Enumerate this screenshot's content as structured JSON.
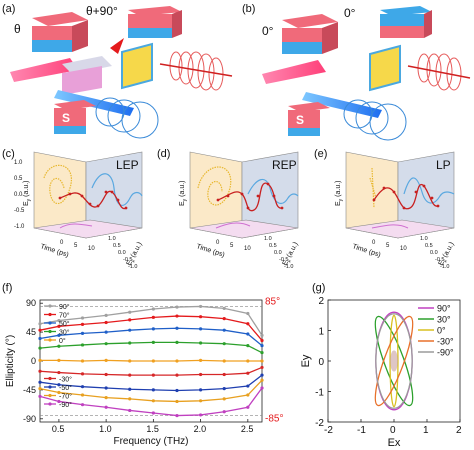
{
  "figure": {
    "panel_labels": [
      "(a)",
      "(b)",
      "(c)",
      "(d)",
      "(e)",
      "(f)",
      "(g)"
    ],
    "panel_a": {
      "angle_left": "θ",
      "angle_right": "θ+90°"
    },
    "panel_b": {
      "angle_left": "0°",
      "angle_right": "0°"
    },
    "panel_c": {
      "mode": "LEP"
    },
    "panel_d": {
      "mode": "REP"
    },
    "panel_e": {
      "mode": "LP"
    },
    "axes3d": {
      "ylabel": "E",
      "ysub": "y",
      "yunit": "(a.u.)",
      "xlabel": "Time (ps)",
      "zlabel": "E",
      "zsub": "x",
      "zunit": "(a.u.)",
      "yticks": [
        "1.0",
        "0.5",
        "0.0",
        "-0.5",
        "-1.0"
      ],
      "xticks": [
        "0",
        "5",
        "10"
      ],
      "zticks": [
        "1.0",
        "0.5",
        "0.0",
        "-0.5",
        "-1.0"
      ]
    }
  },
  "chart_data": [
    {
      "type": "line",
      "panel": "(f)",
      "xlabel": "Frequency (THz)",
      "ylabel": "Ellipticity (°)",
      "xlim": [
        0.3,
        2.65
      ],
      "ylim": [
        -95,
        95
      ],
      "xticks": [
        "0.5",
        "1.0",
        "1.5",
        "2.0",
        "2.5"
      ],
      "yticks": [
        "90",
        "45",
        "0",
        "-45",
        "-90"
      ],
      "ytick_values": [
        90,
        45,
        0,
        -45,
        -90
      ],
      "xtick_values": [
        0.5,
        1.0,
        1.5,
        2.0,
        2.5
      ],
      "annotations": [
        "85°",
        "-85°"
      ],
      "annotation_values": [
        85,
        -85
      ],
      "annotation_color": "#e41a1c",
      "legend_placement": "left",
      "x": [
        0.3,
        0.5,
        0.75,
        1.0,
        1.25,
        1.5,
        1.75,
        2.0,
        2.25,
        2.5,
        2.65
      ],
      "series": [
        {
          "name": "90°",
          "color": "#a0a0a0",
          "values": [
            58,
            63,
            67,
            71,
            76,
            81,
            84,
            85,
            82,
            74,
            40
          ]
        },
        {
          "name": "70°",
          "color": "#e41a1c",
          "values": [
            48,
            54,
            57,
            60,
            64,
            68,
            70,
            69,
            66,
            58,
            32
          ]
        },
        {
          "name": "50°",
          "color": "#1f5fc8",
          "values": [
            35,
            40,
            43,
            45,
            48,
            50,
            51,
            50,
            48,
            42,
            24
          ]
        },
        {
          "name": "30°",
          "color": "#2ca02c",
          "values": [
            20,
            23,
            25,
            27,
            28,
            29,
            29,
            28,
            27,
            24,
            13
          ]
        },
        {
          "name": "0°",
          "color": "#f0a020",
          "values": [
            1,
            1,
            0,
            1,
            0,
            0,
            0,
            1,
            0,
            0,
            0
          ]
        },
        {
          "name": "-30°",
          "color": "#d62728",
          "values": [
            -16,
            -18,
            -20,
            -21,
            -22,
            -22,
            -22,
            -21,
            -21,
            -19,
            -10
          ]
        },
        {
          "name": "-50°",
          "color": "#1f3fb0",
          "values": [
            -33,
            -37,
            -40,
            -42,
            -44,
            -45,
            -46,
            -45,
            -43,
            -39,
            -22
          ]
        },
        {
          "name": "-70°",
          "color": "#e8a020",
          "values": [
            -43,
            -49,
            -53,
            -57,
            -59,
            -62,
            -63,
            -62,
            -59,
            -53,
            -30
          ]
        },
        {
          "name": "-90°",
          "color": "#c040c0",
          "values": [
            -55,
            -63,
            -68,
            -72,
            -77,
            -81,
            -85,
            -84,
            -79,
            -72,
            -42
          ]
        }
      ]
    },
    {
      "type": "line",
      "panel": "(g)",
      "xlabel": "Ex",
      "ylabel": "Ey",
      "xlim": [
        -2,
        2
      ],
      "ylim": [
        -2,
        2
      ],
      "xticks": [
        "-2",
        "-1",
        "0",
        "1",
        "2"
      ],
      "yticks": [
        "2",
        "1",
        "0",
        "-1",
        "-2"
      ],
      "xtick_values": [
        -2,
        -1,
        0,
        1,
        2
      ],
      "ytick_values": [
        2,
        1,
        0,
        -1,
        -2
      ],
      "legend_placement": "right",
      "series": [
        {
          "name": "90°",
          "color": "#c040c0",
          "a": 0.55,
          "b": 1.6,
          "rot": 0
        },
        {
          "name": "30°",
          "color": "#2ca02c",
          "a": 0.3,
          "b": 1.55,
          "rot": -20
        },
        {
          "name": "0°",
          "color": "#d8c020",
          "a": 0.12,
          "b": 1.5,
          "rot": 0
        },
        {
          "name": "-30°",
          "color": "#e8702a",
          "a": 0.3,
          "b": 1.55,
          "rot": 20
        },
        {
          "name": "-90°",
          "color": "#9a9a9a",
          "a": 0.55,
          "b": 1.55,
          "rot": 0
        }
      ]
    }
  ]
}
